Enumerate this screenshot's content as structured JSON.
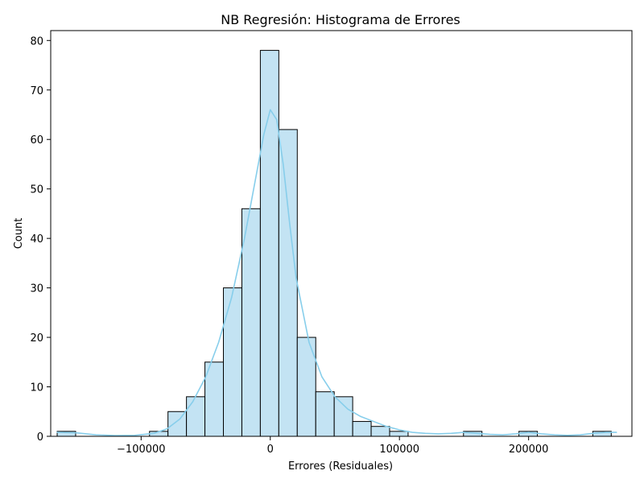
{
  "chart_data": {
    "type": "bar",
    "title": "NB Regresión: Histograma de Errores",
    "xlabel": "Errores (Residuales)",
    "ylabel": "Count",
    "xlim": [
      -170000,
      280000
    ],
    "ylim": [
      0,
      82
    ],
    "xticks": [
      -100000,
      0,
      100000,
      200000
    ],
    "xtick_labels": [
      "−100000",
      "0",
      "100000",
      "200000"
    ],
    "yticks": [
      0,
      10,
      20,
      30,
      40,
      50,
      60,
      70,
      80
    ],
    "bin_edges": [
      -165000,
      -150700,
      -136400,
      -122100,
      -107800,
      -93500,
      -79200,
      -64900,
      -50600,
      -36300,
      -22000,
      -7700,
      6600,
      20900,
      35200,
      49500,
      63800,
      78100,
      92400,
      106700,
      121000,
      135300,
      149600,
      163900,
      178200,
      192500,
      206800,
      221100,
      235400,
      249700,
      264000
    ],
    "counts": [
      1,
      0,
      0,
      0,
      0,
      1,
      5,
      8,
      15,
      30,
      46,
      78,
      62,
      20,
      9,
      8,
      3,
      2,
      1,
      0,
      0,
      0,
      1,
      0,
      0,
      1,
      0,
      0,
      0,
      1
    ],
    "bar_fill": "#c3e3f3",
    "bar_edge": "#000000",
    "kde_color": "#87ceeb",
    "kde": {
      "x": [
        -165000,
        -150000,
        -135000,
        -120000,
        -105000,
        -90000,
        -80000,
        -70000,
        -60000,
        -50000,
        -40000,
        -30000,
        -20000,
        -10000,
        -5000,
        0,
        5000,
        10000,
        15000,
        20000,
        30000,
        40000,
        50000,
        60000,
        70000,
        80000,
        90000,
        100000,
        110000,
        120000,
        130000,
        140000,
        150000,
        160000,
        170000,
        180000,
        190000,
        200000,
        210000,
        220000,
        230000,
        240000,
        250000,
        260000,
        268000
      ],
      "y": [
        0.8,
        0.7,
        0.3,
        0.15,
        0.2,
        0.6,
        1.5,
        3.5,
        7,
        12,
        19,
        28,
        40,
        54,
        61,
        66,
        64,
        55,
        43,
        32,
        19,
        12,
        8,
        5.5,
        4,
        3,
        2,
        1.3,
        0.8,
        0.6,
        0.5,
        0.6,
        0.8,
        0.6,
        0.4,
        0.3,
        0.5,
        0.8,
        0.5,
        0.3,
        0.2,
        0.3,
        0.6,
        0.8,
        0.8
      ]
    }
  }
}
